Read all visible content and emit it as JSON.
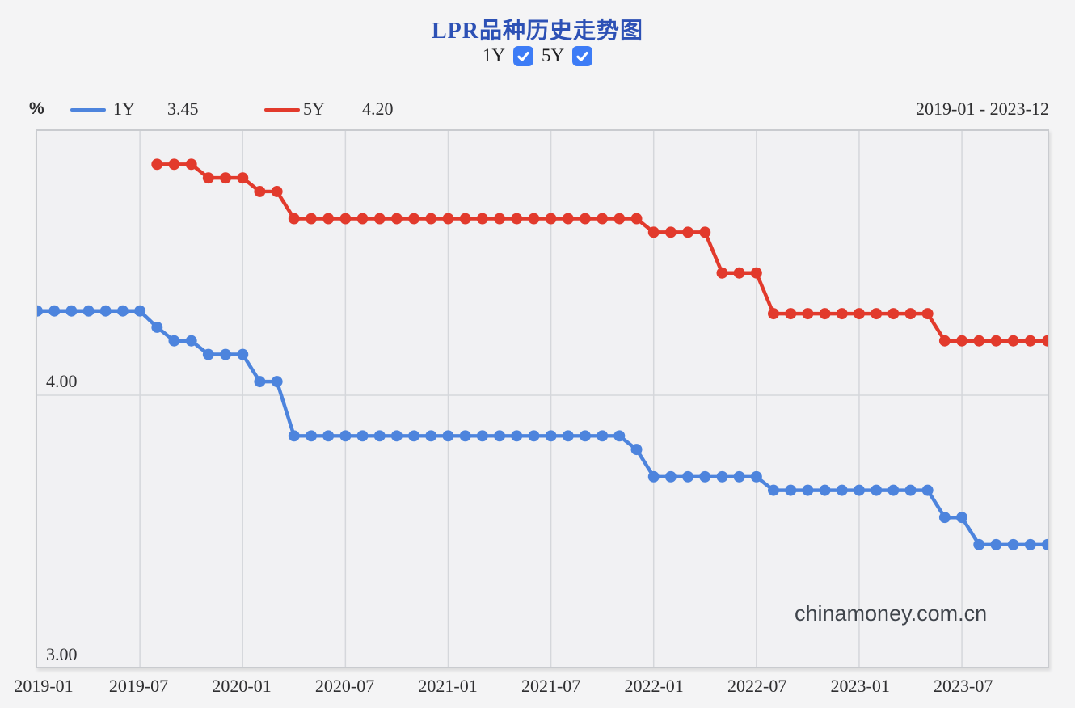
{
  "header": {
    "title": "LPR品种历史走势图",
    "toggles": [
      {
        "label": "1Y",
        "checked": true
      },
      {
        "label": "5Y",
        "checked": true
      }
    ],
    "checkbox_color": "#3d7cf6"
  },
  "legend": {
    "unit": "%",
    "items": [
      {
        "name": "1Y",
        "value": "3.45",
        "color": "#4d84dd"
      },
      {
        "name": "5Y",
        "value": "4.20",
        "color": "#e23a2c"
      }
    ],
    "date_range": "2019-01 - 2023-12"
  },
  "watermark": "chinamoney.com.cn",
  "chart_data": {
    "type": "line",
    "title": "LPR品种历史走势图",
    "ylabel": "%",
    "x": [
      "2019-01",
      "2019-02",
      "2019-03",
      "2019-04",
      "2019-05",
      "2019-06",
      "2019-07",
      "2019-08",
      "2019-09",
      "2019-10",
      "2019-11",
      "2019-12",
      "2020-01",
      "2020-02",
      "2020-03",
      "2020-04",
      "2020-05",
      "2020-06",
      "2020-07",
      "2020-08",
      "2020-09",
      "2020-10",
      "2020-11",
      "2020-12",
      "2021-01",
      "2021-02",
      "2021-03",
      "2021-04",
      "2021-05",
      "2021-06",
      "2021-07",
      "2021-08",
      "2021-09",
      "2021-10",
      "2021-11",
      "2021-12",
      "2022-01",
      "2022-02",
      "2022-03",
      "2022-04",
      "2022-05",
      "2022-06",
      "2022-07",
      "2022-08",
      "2022-09",
      "2022-10",
      "2022-11",
      "2022-12",
      "2023-01",
      "2023-02",
      "2023-03",
      "2023-04",
      "2023-05",
      "2023-06",
      "2023-07",
      "2023-08",
      "2023-09",
      "2023-10",
      "2023-11",
      "2023-12"
    ],
    "series": [
      {
        "name": "1Y",
        "color": "#4d84dd",
        "current_value": 3.45,
        "values": [
          4.31,
          4.31,
          4.31,
          4.31,
          4.31,
          4.31,
          4.31,
          4.25,
          4.2,
          4.2,
          4.15,
          4.15,
          4.15,
          4.05,
          4.05,
          3.85,
          3.85,
          3.85,
          3.85,
          3.85,
          3.85,
          3.85,
          3.85,
          3.85,
          3.85,
          3.85,
          3.85,
          3.85,
          3.85,
          3.85,
          3.85,
          3.85,
          3.85,
          3.85,
          3.85,
          3.8,
          3.7,
          3.7,
          3.7,
          3.7,
          3.7,
          3.7,
          3.7,
          3.65,
          3.65,
          3.65,
          3.65,
          3.65,
          3.65,
          3.65,
          3.65,
          3.65,
          3.65,
          3.55,
          3.55,
          3.45,
          3.45,
          3.45,
          3.45,
          3.45
        ]
      },
      {
        "name": "5Y",
        "color": "#e23a2c",
        "current_value": 4.2,
        "values": [
          null,
          null,
          null,
          null,
          null,
          null,
          null,
          4.85,
          4.85,
          4.85,
          4.8,
          4.8,
          4.8,
          4.75,
          4.75,
          4.65,
          4.65,
          4.65,
          4.65,
          4.65,
          4.65,
          4.65,
          4.65,
          4.65,
          4.65,
          4.65,
          4.65,
          4.65,
          4.65,
          4.65,
          4.65,
          4.65,
          4.65,
          4.65,
          4.65,
          4.65,
          4.6,
          4.6,
          4.6,
          4.6,
          4.45,
          4.45,
          4.45,
          4.3,
          4.3,
          4.3,
          4.3,
          4.3,
          4.3,
          4.3,
          4.3,
          4.3,
          4.3,
          4.2,
          4.2,
          4.2,
          4.2,
          4.2,
          4.2,
          4.2
        ]
      }
    ],
    "ylim": [
      3.0,
      4.973
    ],
    "yticks": [
      {
        "value": 4.0,
        "label": "4.00"
      },
      {
        "value": 3.0,
        "label": "3.00"
      }
    ],
    "xticks": [
      {
        "index": 0,
        "label": "2019-01",
        "dx": 10
      },
      {
        "index": 6,
        "label": "2019-07",
        "dx": 0
      },
      {
        "index": 12,
        "label": "2020-01",
        "dx": 0
      },
      {
        "index": 18,
        "label": "2020-07",
        "dx": 0
      },
      {
        "index": 24,
        "label": "2021-01",
        "dx": 0
      },
      {
        "index": 30,
        "label": "2021-07",
        "dx": 0
      },
      {
        "index": 36,
        "label": "2022-01",
        "dx": 0
      },
      {
        "index": 42,
        "label": "2022-07",
        "dx": 0
      },
      {
        "index": 48,
        "label": "2023-01",
        "dx": 0
      },
      {
        "index": 54,
        "label": "2023-07",
        "dx": 0
      }
    ],
    "grid": {
      "vertical": "semiannual",
      "horizontal": "integer values",
      "color": "#d5d7db"
    },
    "legend_position": "top-left",
    "marker": {
      "radius": 7,
      "line_width": 4.5
    }
  }
}
